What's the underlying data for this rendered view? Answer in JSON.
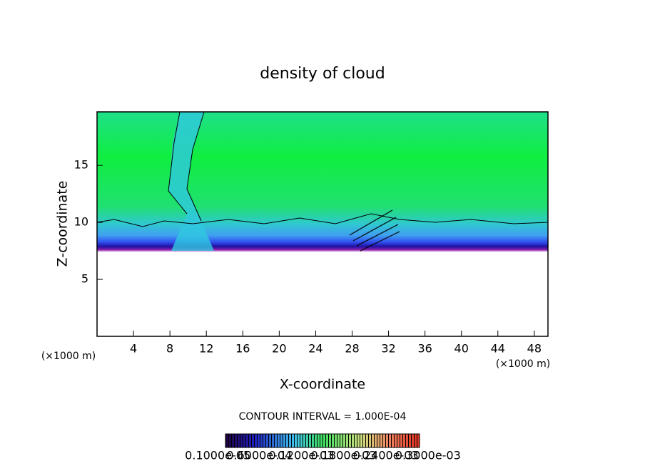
{
  "chart_data": {
    "type": "contour",
    "title": "density of cloud",
    "x_label": "X-coordinate",
    "y_label": "Z-coordinate",
    "x_unit": "(×1000 m)",
    "y_unit": "(×1000 m)",
    "contour_interval": "CONTOUR INTERVAL = 1.000E-04",
    "xlim": [
      0,
      49.5
    ],
    "xticks": [
      4,
      8,
      12,
      16,
      20,
      24,
      28,
      32,
      36,
      40,
      44,
      48
    ],
    "ylim": [
      0,
      19.7
    ],
    "yticks": [
      5,
      10,
      15
    ],
    "colorbar_lim": [
      1.2e-05,
      0.000288
    ],
    "colorbar_ticks": [
      {
        "value": 1e-06,
        "label": "0.1000e-05"
      },
      {
        "value": 6e-05,
        "label": "0.6000e-04"
      },
      {
        "value": 0.00012,
        "label": "0.1200e-03"
      },
      {
        "value": 0.00018,
        "label": "0.1800e-03"
      },
      {
        "value": 0.00024,
        "label": "0.2400e-03"
      },
      {
        "value": 0.0003,
        "label": "0.3000e-03"
      }
    ]
  }
}
